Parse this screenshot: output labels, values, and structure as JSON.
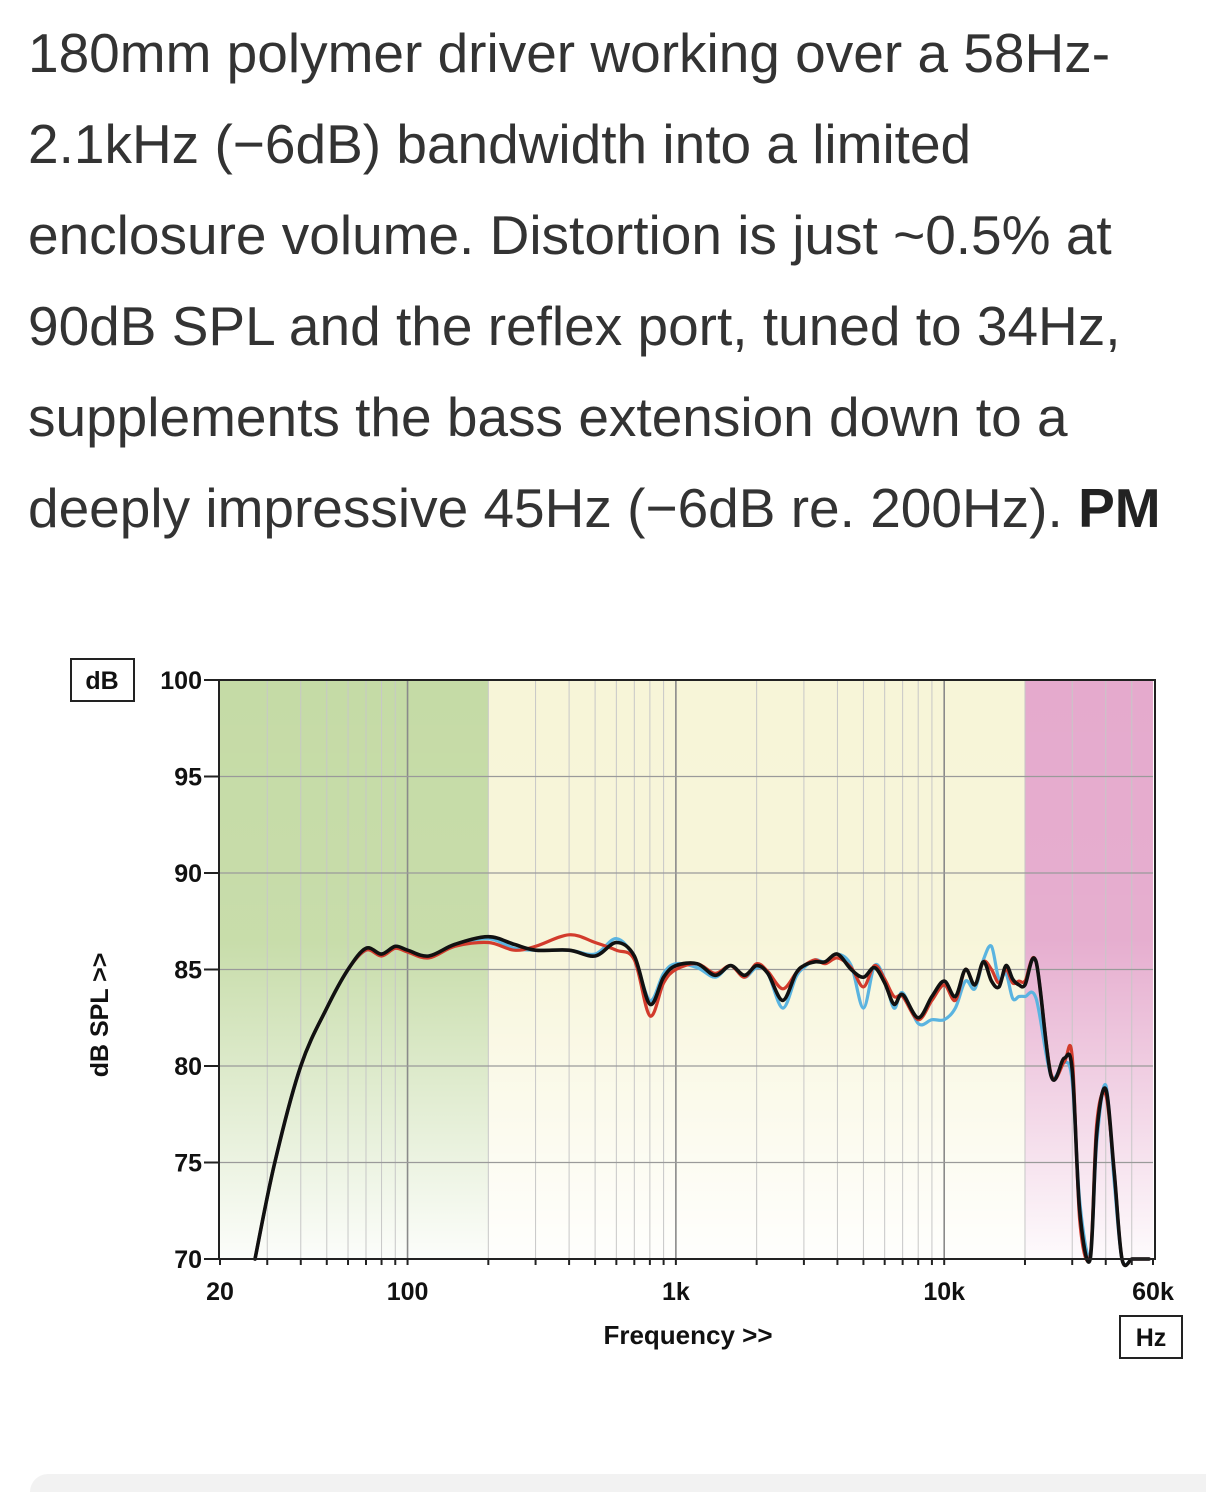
{
  "article": {
    "lines": [
      "180mm polymer driver working over a 58Hz-",
      "2.1kHz (−6dB) bandwidth into a limited",
      "enclosure volume. Distortion is just ~0.5% at",
      "90dB SPL and the reflex port, tuned to 34Hz,",
      "supplements the bass extension down to a"
    ],
    "last_line": "deeply impressive 45Hz (−6dB re. 200Hz). ",
    "last_line_bold": "PM"
  },
  "chart_data": {
    "type": "line",
    "title": "",
    "xlabel": "Frequency >>",
    "ylabel": "dB SPL >>",
    "x_unit_box": "Hz",
    "y_unit_box": "dB",
    "xscale": "log",
    "xlim": [
      20,
      60000
    ],
    "ylim": [
      70,
      100
    ],
    "x_ticks": [
      {
        "value": 20,
        "label": "20"
      },
      {
        "value": 100,
        "label": "100"
      },
      {
        "value": 1000,
        "label": "1k"
      },
      {
        "value": 10000,
        "label": "10k"
      },
      {
        "value": 60000,
        "label": "60k"
      }
    ],
    "y_ticks": [
      {
        "value": 70,
        "label": "70"
      },
      {
        "value": 75,
        "label": "75"
      },
      {
        "value": 80,
        "label": "80"
      },
      {
        "value": 85,
        "label": "85"
      },
      {
        "value": 90,
        "label": "90"
      },
      {
        "value": 95,
        "label": "95"
      },
      {
        "value": 100,
        "label": "100"
      }
    ],
    "grid": true,
    "bands": [
      {
        "from": 20,
        "to": 200,
        "color": "#c5dba6"
      },
      {
        "from": 200,
        "to": 20000,
        "color": "#f7f5d8"
      },
      {
        "from": 20000,
        "to": 60000,
        "color": "#e5aacd"
      }
    ],
    "series": [
      {
        "color": "#5ab4e0",
        "x": [
          27,
          32,
          40,
          50,
          60,
          70,
          80,
          90,
          100,
          120,
          150,
          200,
          250,
          300,
          400,
          500,
          600,
          700,
          800,
          900,
          1000,
          1200,
          1400,
          1600,
          1800,
          2000,
          2200,
          2500,
          2800,
          3000,
          3300,
          3600,
          4000,
          4500,
          5000,
          5500,
          6000,
          6500,
          7000,
          8000,
          9000,
          10000,
          11000,
          12000,
          13000,
          14000,
          15000,
          16000,
          17000,
          18000,
          19000,
          20000,
          22000,
          25000,
          28000,
          30000,
          32000,
          35000,
          37000,
          40000,
          43000,
          46000,
          50000,
          52000,
          55000,
          58000
        ],
        "y": [
          70,
          75,
          80,
          83,
          85,
          86,
          85.8,
          86.2,
          86,
          85.7,
          86.3,
          86.6,
          86.1,
          86.0,
          86.0,
          85.8,
          86.6,
          85.6,
          83.4,
          84.8,
          85.3,
          85.1,
          84.6,
          85.2,
          84.6,
          85.1,
          84.8,
          83.0,
          84.6,
          85.1,
          85.5,
          85.4,
          85.8,
          85.2,
          83.0,
          85.2,
          84.5,
          83.0,
          83.8,
          82.2,
          82.4,
          82.4,
          83.0,
          84.4,
          84.0,
          85.5,
          86.2,
          84.5,
          84.8,
          83.5,
          83.6,
          83.6,
          83.5,
          79.5,
          80.2,
          79.2,
          73.0,
          70.2,
          76.0,
          79.0,
          74.0,
          70.0,
          70,
          70,
          70,
          70
        ]
      },
      {
        "color": "#d23b2c",
        "x": [
          27,
          32,
          40,
          50,
          60,
          70,
          80,
          90,
          100,
          120,
          150,
          200,
          250,
          300,
          400,
          500,
          600,
          700,
          800,
          900,
          1000,
          1200,
          1400,
          1600,
          1800,
          2000,
          2200,
          2500,
          2800,
          3000,
          3300,
          3600,
          4000,
          4500,
          5000,
          5500,
          6000,
          6500,
          7000,
          8000,
          9000,
          10000,
          11000,
          12000,
          13000,
          14000,
          15000,
          16000,
          17000,
          18000,
          19000,
          20000,
          22000,
          25000,
          28000,
          30000,
          32000,
          35000,
          37000,
          40000,
          43000,
          46000,
          50000,
          52000,
          55000,
          58000
        ],
        "y": [
          70,
          75,
          80,
          83,
          85,
          86,
          85.7,
          86.1,
          85.9,
          85.6,
          86.2,
          86.4,
          86.0,
          86.2,
          86.8,
          86.4,
          86.0,
          85.5,
          82.6,
          84.3,
          85.0,
          85.3,
          84.8,
          85.2,
          84.6,
          85.3,
          84.9,
          84.0,
          84.8,
          85.2,
          85.5,
          85.3,
          85.6,
          85.1,
          84.1,
          85.2,
          84.5,
          83.6,
          83.6,
          82.4,
          83.4,
          84.2,
          83.4,
          85.0,
          84.2,
          85.4,
          85.0,
          84.3,
          85.0,
          84.3,
          84.4,
          84.4,
          85.4,
          79.6,
          80.2,
          80.5,
          72.0,
          70.2,
          77.0,
          78.5,
          74.5,
          70.0,
          70,
          70,
          70,
          70
        ]
      },
      {
        "color": "#111111",
        "x": [
          27,
          32,
          40,
          50,
          60,
          70,
          80,
          90,
          100,
          120,
          150,
          200,
          250,
          300,
          400,
          500,
          600,
          700,
          800,
          900,
          1000,
          1200,
          1400,
          1600,
          1800,
          2000,
          2200,
          2500,
          2800,
          3000,
          3300,
          3600,
          4000,
          4500,
          5000,
          5500,
          6000,
          6500,
          7000,
          8000,
          9000,
          10000,
          11000,
          12000,
          13000,
          14000,
          15000,
          16000,
          17000,
          18000,
          19000,
          20000,
          22000,
          25000,
          28000,
          30000,
          32000,
          35000,
          37000,
          40000,
          43000,
          46000,
          50000,
          52000,
          55000,
          58000
        ],
        "y": [
          70,
          75,
          80,
          83,
          85,
          86.1,
          85.8,
          86.2,
          86.0,
          85.7,
          86.3,
          86.7,
          86.3,
          86.0,
          86.0,
          85.7,
          86.4,
          85.7,
          83.2,
          84.6,
          85.2,
          85.3,
          84.7,
          85.2,
          84.7,
          85.2,
          84.8,
          83.4,
          84.8,
          85.2,
          85.4,
          85.4,
          85.8,
          85.0,
          84.6,
          85.1,
          84.3,
          83.2,
          83.7,
          82.5,
          83.6,
          84.4,
          83.6,
          85.0,
          84.2,
          85.4,
          84.4,
          84.1,
          85.2,
          84.5,
          84.2,
          84.2,
          85.4,
          79.5,
          80.4,
          79.8,
          72.5,
          70.0,
          76.5,
          78.8,
          74.5,
          70.0,
          70,
          70,
          70,
          70
        ]
      }
    ]
  }
}
